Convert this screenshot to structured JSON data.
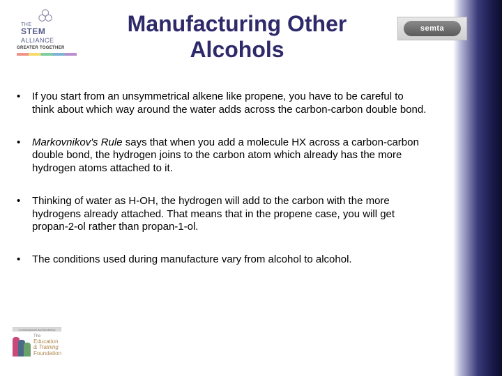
{
  "title_color": "#2e2a6a",
  "title": "Manufacturing Other Alcohols",
  "logo_left": {
    "the": "THE",
    "name": "STEM",
    "sub": "ALLIANCE",
    "tag": "GREATER TOGETHER"
  },
  "logo_right": {
    "text": "semta"
  },
  "bullets": [
    "If you start from an unsymmetrical alkene like propene, you have to be careful to think about which way around the water adds across the carbon-carbon double bond.",
    "Markovnikov's Rule says that when you add a molecule HX across a carbon-carbon double bond, the hydrogen joins to the carbon atom which already has the more hydrogen atoms attached to it.",
    "Thinking of water as H-OH, the hydrogen will add to the carbon with the more hydrogens already attached. That means that in the propene case, you will get propan-2-ol rather than propan-1-ol.",
    "The conditions used during manufacture vary from alcohol to alcohol."
  ],
  "logo_bl": {
    "bar": "Commissioned and funded by",
    "line1": "The",
    "line2": "Education",
    "line3": "& Training",
    "line4": "Foundation"
  }
}
